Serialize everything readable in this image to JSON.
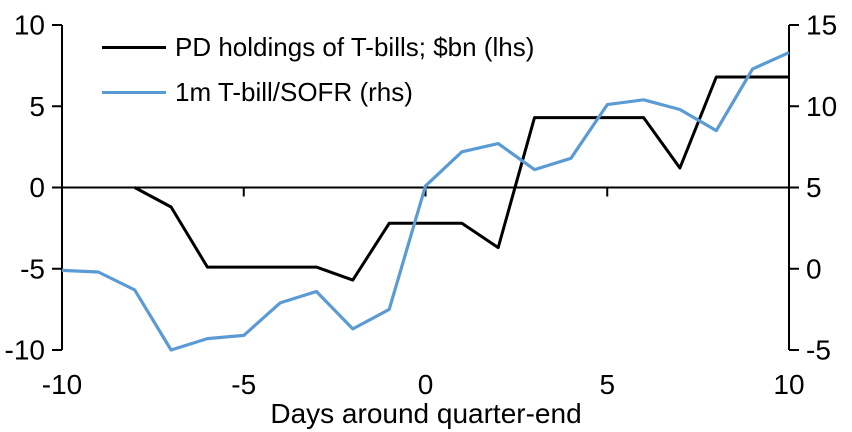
{
  "chart_data": {
    "type": "line",
    "title": "",
    "xlabel": "Days around quarter-end",
    "x_range": [
      -10,
      10
    ],
    "x_ticks": [
      -10,
      -5,
      0,
      5,
      10
    ],
    "left_axis": {
      "range": [
        -10,
        10
      ],
      "ticks": [
        10,
        5,
        0,
        -5,
        -10
      ]
    },
    "right_axis": {
      "range": [
        -5,
        15
      ],
      "ticks": [
        15,
        10,
        5,
        0,
        -5
      ]
    },
    "grid": "off",
    "legend_position": "top-left-inside",
    "series": [
      {
        "name": "PD holdings of T-bills; $bn (lhs)",
        "axis": "left",
        "color": "#000000",
        "x": [
          -8,
          -7,
          -6,
          -5,
          -4,
          -3,
          -2,
          -1,
          0,
          1,
          2,
          3,
          4,
          5,
          6,
          7,
          8,
          9,
          10
        ],
        "values": [
          0,
          -1.2,
          -4.9,
          -4.9,
          -4.9,
          -4.9,
          -5.7,
          -2.2,
          -2.2,
          -2.2,
          -3.7,
          4.3,
          4.3,
          4.3,
          4.3,
          1.2,
          6.8,
          6.8,
          6.8
        ]
      },
      {
        "name": "1m T-bill/SOFR (rhs)",
        "axis": "right",
        "color": "#5B9BD5",
        "x": [
          -10,
          -9,
          -8,
          -7,
          -6,
          -5,
          -4,
          -3,
          -2,
          -1,
          0,
          1,
          2,
          3,
          4,
          5,
          6,
          7,
          8,
          9,
          10
        ],
        "values": [
          -0.1,
          -0.2,
          -1.3,
          -5.0,
          -4.3,
          -4.1,
          -2.1,
          -1.4,
          -3.7,
          -2.5,
          5.1,
          7.2,
          7.7,
          6.1,
          6.8,
          10.1,
          10.4,
          9.8,
          8.5,
          12.3,
          13.3
        ]
      }
    ]
  }
}
